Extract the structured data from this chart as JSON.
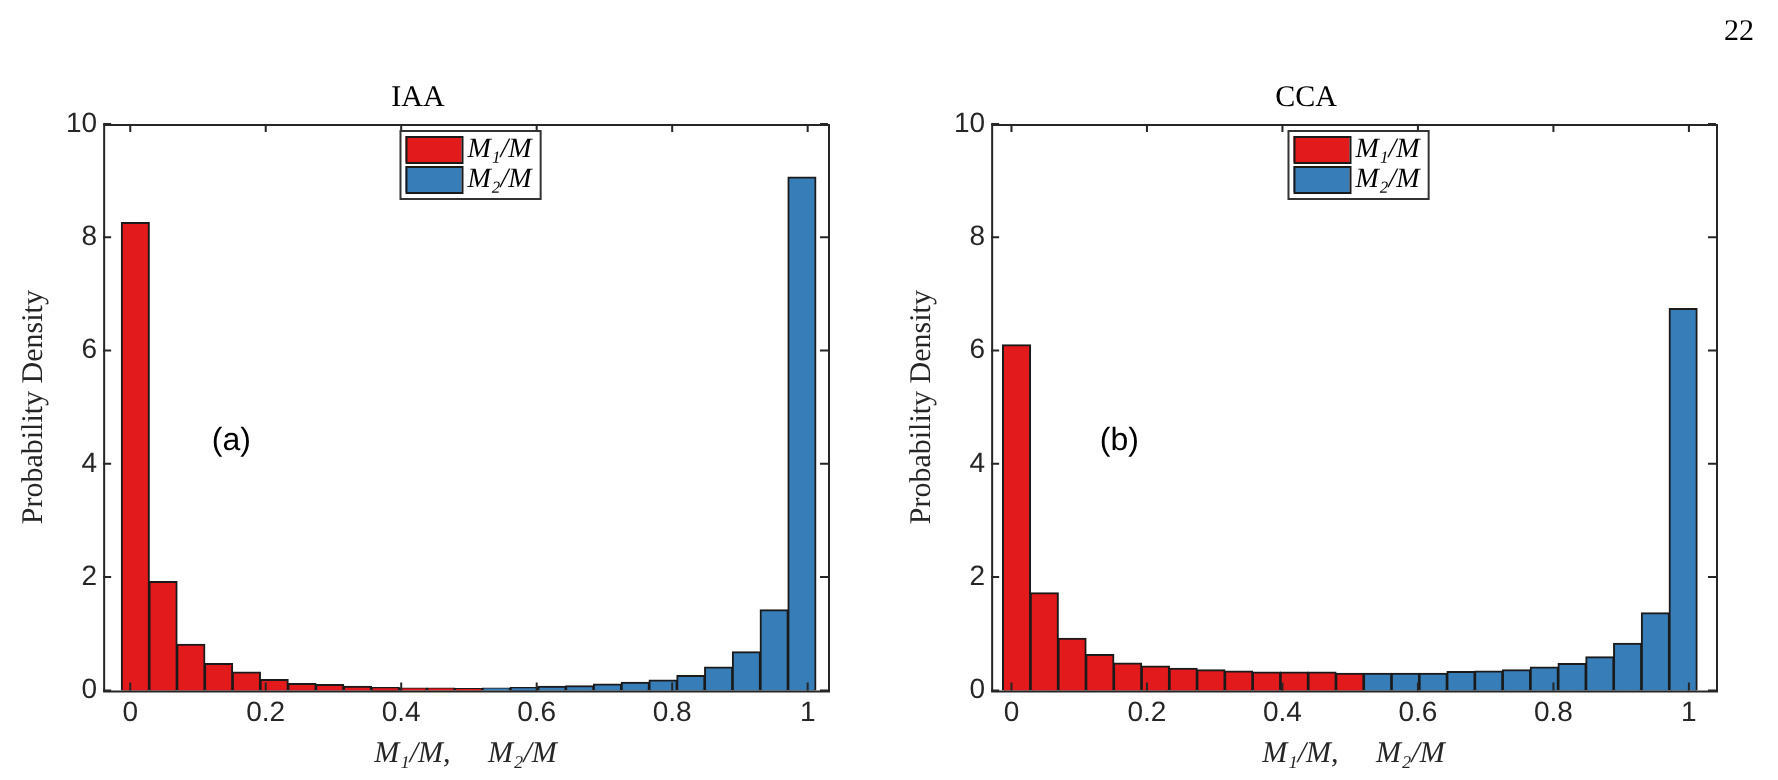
{
  "chart_data": [
    {
      "type": "histogram",
      "title": "IAA",
      "xlabel": "M₁/M,     M₂/M",
      "ylabel": "Probability Density",
      "annotations": [
        "(a)"
      ],
      "xlim": [
        -0.04,
        1.03
      ],
      "ylim": [
        0,
        10
      ],
      "xticks": [
        0,
        0.2,
        0.4,
        0.6,
        0.8,
        1
      ],
      "yticks": [
        0,
        2,
        4,
        6,
        8,
        10
      ],
      "legend": "top",
      "bins": [
        -0.013,
        0.028,
        0.069,
        0.11,
        0.151,
        0.192,
        0.233,
        0.274,
        0.315,
        0.356,
        0.397,
        0.438,
        0.479,
        0.52,
        0.561,
        0.602,
        0.643,
        0.684,
        0.725,
        0.766,
        0.807,
        0.848,
        0.889,
        0.93,
        0.971,
        1.012
      ],
      "series": [
        {
          "name": "M₁/M",
          "color": "#e31a1c",
          "values": [
            8.26,
            1.92,
            0.81,
            0.47,
            0.32,
            0.19,
            0.12,
            0.1,
            0.07,
            0.05,
            0.04,
            0.04,
            0.03,
            null,
            null,
            null,
            null,
            null,
            null,
            null,
            null,
            null,
            null,
            null,
            null
          ]
        },
        {
          "name": "M₂/M",
          "color": "#377eb8",
          "values": [
            null,
            null,
            null,
            null,
            null,
            null,
            null,
            null,
            null,
            null,
            null,
            null,
            null,
            0.04,
            0.05,
            0.07,
            0.08,
            0.11,
            0.14,
            0.18,
            0.26,
            0.41,
            0.68,
            1.42,
            9.06
          ]
        }
      ]
    },
    {
      "type": "histogram",
      "title": "CCA",
      "xlabel": "M₁/M,     M₂/M",
      "ylabel": "Probability Density",
      "annotations": [
        "(b)",
        "22"
      ],
      "xlim": [
        -0.03,
        1.04
      ],
      "ylim": [
        0,
        10
      ],
      "xticks": [
        0,
        0.2,
        0.4,
        0.6,
        0.8,
        1
      ],
      "yticks": [
        0,
        2,
        4,
        6,
        8,
        10
      ],
      "legend": "top",
      "bins": [
        -0.013,
        0.028,
        0.069,
        0.11,
        0.151,
        0.192,
        0.233,
        0.274,
        0.315,
        0.356,
        0.397,
        0.438,
        0.479,
        0.52,
        0.561,
        0.602,
        0.643,
        0.684,
        0.725,
        0.766,
        0.807,
        0.848,
        0.889,
        0.93,
        0.971,
        1.012
      ],
      "series": [
        {
          "name": "M₁/M",
          "color": "#e31a1c",
          "values": [
            6.1,
            1.72,
            0.92,
            0.63,
            0.48,
            0.43,
            0.39,
            0.36,
            0.34,
            0.32,
            0.32,
            0.32,
            0.3,
            null,
            null,
            null,
            null,
            null,
            null,
            null,
            null,
            null,
            null,
            null,
            null
          ]
        },
        {
          "name": "M₂/M",
          "color": "#377eb8",
          "values": [
            null,
            null,
            null,
            null,
            null,
            null,
            null,
            null,
            null,
            null,
            null,
            null,
            null,
            0.3,
            0.3,
            0.3,
            0.33,
            0.34,
            0.36,
            0.41,
            0.47,
            0.59,
            0.83,
            1.37,
            6.74
          ]
        }
      ]
    }
  ]
}
